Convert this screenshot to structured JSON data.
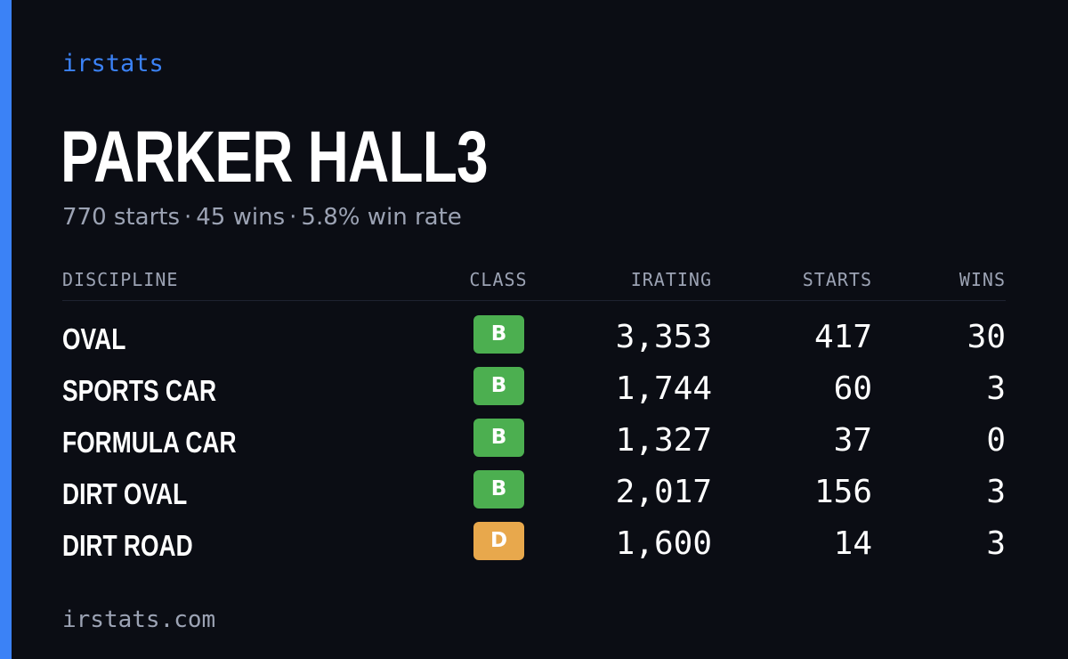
{
  "brand": "irstats",
  "driver_name": "PARKER HALL3",
  "summary": {
    "starts": "770 starts",
    "wins": "45 wins",
    "win_rate": "5.8% win rate",
    "separator": "·"
  },
  "table": {
    "headers": {
      "discipline": "DISCIPLINE",
      "class": "CLASS",
      "irating": "IRATING",
      "starts": "STARTS",
      "wins": "WINS"
    },
    "rows": [
      {
        "discipline": "OVAL",
        "class": "B",
        "class_color": "#4caf50",
        "irating": "3,353",
        "starts": "417",
        "wins": "30"
      },
      {
        "discipline": "SPORTS CAR",
        "class": "B",
        "class_color": "#4caf50",
        "irating": "1,744",
        "starts": "60",
        "wins": "3"
      },
      {
        "discipline": "FORMULA CAR",
        "class": "B",
        "class_color": "#4caf50",
        "irating": "1,327",
        "starts": "37",
        "wins": "0"
      },
      {
        "discipline": "DIRT OVAL",
        "class": "B",
        "class_color": "#4caf50",
        "irating": "2,017",
        "starts": "156",
        "wins": "3"
      },
      {
        "discipline": "DIRT ROAD",
        "class": "D",
        "class_color": "#e8a84c",
        "irating": "1,600",
        "starts": "14",
        "wins": "3"
      }
    ]
  },
  "footer": "irstats.com",
  "colors": {
    "background": "#0b0d14",
    "accent": "#3b82f6",
    "muted_text": "#9ca3b4"
  }
}
